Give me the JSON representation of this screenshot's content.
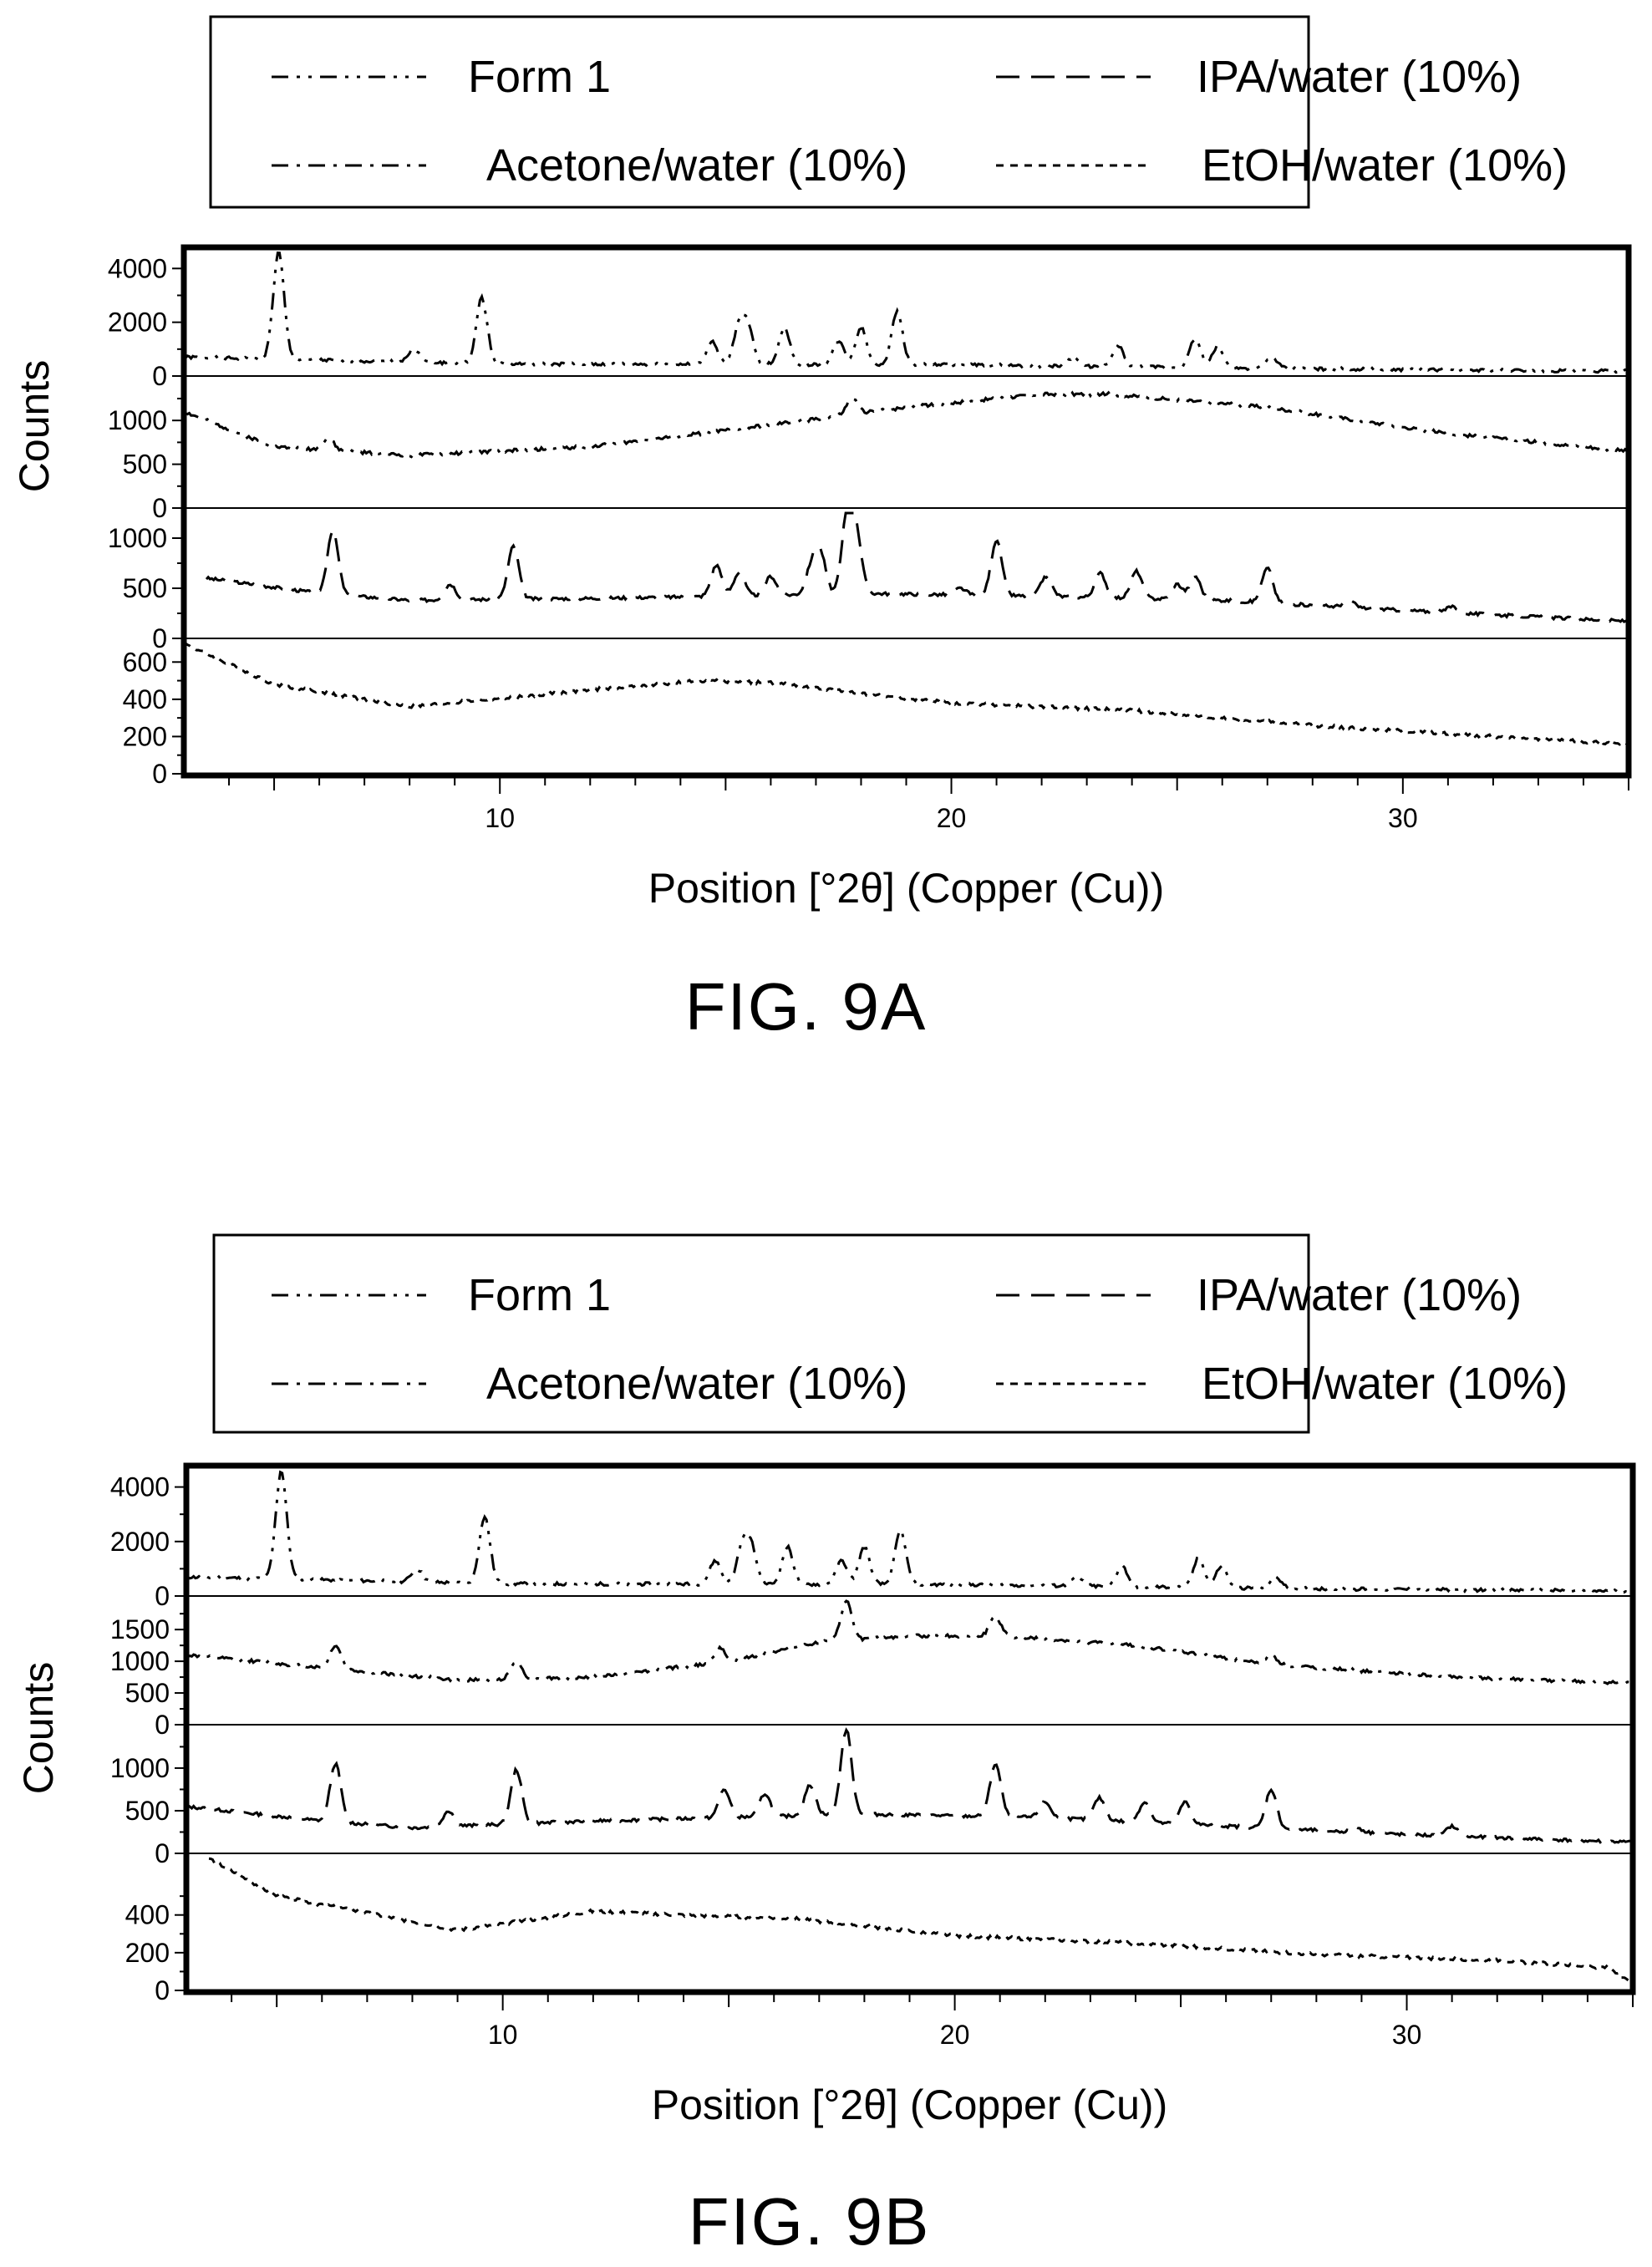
{
  "figures": [
    {
      "id": "9A",
      "fig_label": "FIG. 9A",
      "xlabel": "Position [°2θ] (Copper (Cu))",
      "ylabel": "Counts",
      "legend": [
        "Form 1",
        "IPA/water (10%)",
        "Acetone/water (10%)",
        "EtOH/water (10%)"
      ]
    },
    {
      "id": "9B",
      "fig_label": "FIG. 9B",
      "xlabel": "Position [°2θ] (Copper (Cu))",
      "ylabel": "Counts",
      "legend": [
        "Form 1",
        "IPA/water (10%)",
        "Acetone/water (10%)",
        "EtOH/water (10%)"
      ]
    }
  ],
  "chart_data": [
    {
      "type": "line",
      "figure": "FIG. 9A",
      "xlabel": "Position [°2θ] (Copper (Cu))",
      "ylabel": "Counts",
      "xlim": [
        3,
        35
      ],
      "xticks": [
        10,
        20,
        30
      ],
      "legend_position": "top",
      "grid": false,
      "panels": [
        {
          "series": "Form 1",
          "dash": "dashdotdot",
          "ylim": [
            0,
            4600
          ],
          "yticks": [
            0,
            2000,
            4000
          ],
          "baseline": [
            [
              3,
              700
            ],
            [
              10,
              450
            ],
            [
              20,
              420
            ],
            [
              27,
              280
            ],
            [
              35,
              180
            ]
          ],
          "peaks": [
            [
              5.1,
              4600
            ],
            [
              8.1,
              1000
            ],
            [
              9.6,
              2900
            ],
            [
              14.7,
              1300
            ],
            [
              15.3,
              1800
            ],
            [
              15.5,
              1700
            ],
            [
              16.3,
              1800
            ],
            [
              17.5,
              1300
            ],
            [
              18.0,
              1800
            ],
            [
              18.8,
              2400
            ],
            [
              22.7,
              700
            ],
            [
              23.7,
              1100
            ],
            [
              25.4,
              1400
            ],
            [
              25.9,
              1100
            ],
            [
              27.1,
              700
            ]
          ]
        },
        {
          "series": "Acetone/water (10%)",
          "dash": "dashdot",
          "ylim": [
            0,
            1450
          ],
          "yticks": [
            0,
            500,
            1000
          ],
          "baseline": [
            [
              3,
              1100
            ],
            [
              5,
              700
            ],
            [
              8,
              600
            ],
            [
              12,
              700
            ],
            [
              16,
              950
            ],
            [
              19,
              1150
            ],
            [
              22,
              1300
            ],
            [
              23.5,
              1300
            ],
            [
              27,
              1150
            ],
            [
              31,
              850
            ],
            [
              35,
              650
            ]
          ],
          "peaks": [
            [
              6.2,
              800
            ],
            [
              17.8,
              1250
            ]
          ]
        },
        {
          "series": "IPA/water (10%)",
          "dash": "longdash",
          "ylim": [
            0,
            1250
          ],
          "yticks": [
            0,
            500,
            1000
          ],
          "baseline": [
            [
              3.5,
              600
            ],
            [
              6,
              450
            ],
            [
              8,
              380
            ],
            [
              12,
              400
            ],
            [
              15,
              420
            ],
            [
              18,
              450
            ],
            [
              22,
              420
            ],
            [
              26,
              380
            ],
            [
              30,
              280
            ],
            [
              35,
              170
            ]
          ],
          "peaks": [
            [
              6.3,
              1080
            ],
            [
              8.9,
              540
            ],
            [
              10.3,
              920
            ],
            [
              14.8,
              730
            ],
            [
              15.3,
              660
            ],
            [
              16.0,
              620
            ],
            [
              16.9,
              700
            ],
            [
              17.1,
              830
            ],
            [
              17.7,
              1250
            ],
            [
              17.9,
              980
            ],
            [
              20.2,
              500
            ],
            [
              21.0,
              980
            ],
            [
              22.1,
              620
            ],
            [
              23.3,
              650
            ],
            [
              24.1,
              670
            ],
            [
              25.0,
              540
            ],
            [
              25.4,
              620
            ],
            [
              27.0,
              700
            ],
            [
              28.8,
              380
            ],
            [
              31.1,
              320
            ]
          ]
        },
        {
          "series": "EtOH/water (10%)",
          "dash": "shortdash",
          "ylim": [
            0,
            700
          ],
          "yticks": [
            0,
            200,
            400,
            600
          ],
          "baseline": [
            [
              3,
              700
            ],
            [
              5,
              480
            ],
            [
              8,
              360
            ],
            [
              12,
              450
            ],
            [
              14.5,
              500
            ],
            [
              16,
              490
            ],
            [
              18,
              430
            ],
            [
              20,
              380
            ],
            [
              24,
              340
            ],
            [
              28,
              260
            ],
            [
              32,
              200
            ],
            [
              35,
              160
            ]
          ],
          "peaks": []
        }
      ]
    },
    {
      "type": "line",
      "figure": "FIG. 9B",
      "xlabel": "Position [°2θ] (Copper (Cu))",
      "ylabel": "Counts",
      "xlim": [
        3,
        35
      ],
      "xticks": [
        10,
        20,
        30
      ],
      "legend_position": "top",
      "grid": false,
      "panels": [
        {
          "series": "Form 1",
          "dash": "dashdotdot",
          "ylim": [
            0,
            4600
          ],
          "yticks": [
            0,
            2000,
            4000
          ],
          "baseline": [
            [
              3,
              700
            ],
            [
              10,
              450
            ],
            [
              20,
              420
            ],
            [
              27,
              280
            ],
            [
              35,
              180
            ]
          ],
          "peaks": [
            [
              5.1,
              4600
            ],
            [
              8.1,
              1000
            ],
            [
              9.6,
              2900
            ],
            [
              14.7,
              1300
            ],
            [
              15.3,
              1800
            ],
            [
              15.5,
              1700
            ],
            [
              16.3,
              1800
            ],
            [
              17.5,
              1300
            ],
            [
              18.0,
              1800
            ],
            [
              18.8,
              2400
            ],
            [
              22.7,
              700
            ],
            [
              23.7,
              1100
            ],
            [
              25.4,
              1400
            ],
            [
              25.9,
              1100
            ],
            [
              27.1,
              700
            ]
          ]
        },
        {
          "series": "Acetone/water (10%)",
          "dash": "dashdot",
          "ylim": [
            0,
            1950
          ],
          "yticks": [
            0,
            500,
            1000,
            1500
          ],
          "baseline": [
            [
              3,
              1100
            ],
            [
              6,
              900
            ],
            [
              9,
              700
            ],
            [
              12,
              750
            ],
            [
              15,
              1000
            ],
            [
              17,
              1300
            ],
            [
              19,
              1400
            ],
            [
              21,
              1400
            ],
            [
              24,
              1250
            ],
            [
              27,
              950
            ],
            [
              31,
              750
            ],
            [
              35,
              650
            ]
          ],
          "peaks": [
            [
              6.3,
              1250
            ],
            [
              10.3,
              1000
            ],
            [
              14.8,
              1200
            ],
            [
              17.6,
              1950
            ],
            [
              20.9,
              1700
            ],
            [
              27.0,
              1100
            ]
          ]
        },
        {
          "series": "IPA/water (10%)",
          "dash": "longdash",
          "ylim": [
            0,
            1450
          ],
          "yticks": [
            0,
            500,
            1000
          ],
          "baseline": [
            [
              3,
              550
            ],
            [
              6,
              380
            ],
            [
              8,
              300
            ],
            [
              12,
              380
            ],
            [
              15,
              420
            ],
            [
              18,
              460
            ],
            [
              22,
              420
            ],
            [
              26,
              320
            ],
            [
              30,
              220
            ],
            [
              35,
              130
            ]
          ],
          "peaks": [
            [
              6.3,
              1050
            ],
            [
              8.8,
              500
            ],
            [
              10.3,
              980
            ],
            [
              14.9,
              750
            ],
            [
              15.8,
              700
            ],
            [
              16.8,
              800
            ],
            [
              17.6,
              1450
            ],
            [
              20.9,
              1050
            ],
            [
              22.0,
              600
            ],
            [
              23.2,
              650
            ],
            [
              24.2,
              600
            ],
            [
              25.1,
              600
            ],
            [
              27.0,
              750
            ],
            [
              28.9,
              300
            ],
            [
              31.0,
              320
            ]
          ]
        },
        {
          "series": "EtOH/water (10%)",
          "dash": "shortdash",
          "ylim": [
            0,
            700
          ],
          "yticks": [
            0,
            200,
            400
          ],
          "baseline": [
            [
              3.5,
              700
            ],
            [
              5,
              500
            ],
            [
              9,
              320
            ],
            [
              12,
              420
            ],
            [
              14,
              400
            ],
            [
              16.5,
              380
            ],
            [
              20,
              290
            ],
            [
              24,
              250
            ],
            [
              28,
              190
            ],
            [
              32,
              160
            ],
            [
              34.5,
              120
            ],
            [
              35,
              30
            ]
          ],
          "peaks": []
        }
      ]
    }
  ]
}
